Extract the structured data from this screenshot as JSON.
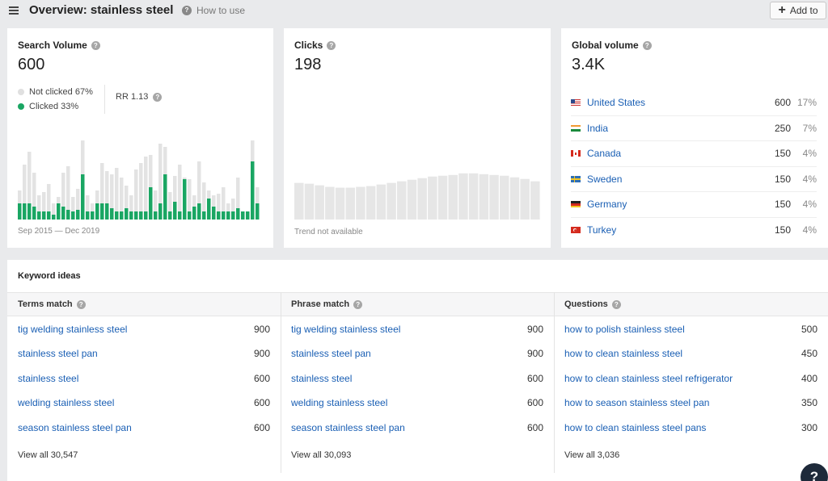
{
  "header": {
    "title": "Overview: stainless steel",
    "how_to": "How to use",
    "add_to": "Add to"
  },
  "search_volume": {
    "title": "Search Volume",
    "value": "600",
    "legend": [
      {
        "label": "Not clicked 67%",
        "color": "#e0e0e0"
      },
      {
        "label": "Clicked 33%",
        "color": "#1aa663"
      }
    ],
    "rr": "RR 1.13",
    "range": "Sep 2015 — Dec 2019",
    "bars_total": [
      0.36,
      0.68,
      0.84,
      0.58,
      0.3,
      0.34,
      0.44,
      0.2,
      0.28,
      0.58,
      0.66,
      0.28,
      0.38,
      0.98,
      0.3,
      0.2,
      0.36,
      0.7,
      0.6,
      0.56,
      0.64,
      0.52,
      0.42,
      0.3,
      0.62,
      0.7,
      0.78,
      0.8,
      0.36,
      0.94,
      0.9,
      0.34,
      0.54,
      0.68,
      0.52,
      0.5,
      0.3,
      0.72,
      0.46,
      0.36,
      0.3,
      0.32,
      0.4,
      0.2,
      0.26,
      0.52,
      0.1,
      0.1,
      0.98,
      0.4
    ],
    "bars_clicked": [
      0.2,
      0.2,
      0.2,
      0.16,
      0.1,
      0.1,
      0.1,
      0.06,
      0.2,
      0.16,
      0.12,
      0.1,
      0.12,
      0.56,
      0.1,
      0.1,
      0.2,
      0.2,
      0.2,
      0.14,
      0.1,
      0.1,
      0.14,
      0.1,
      0.1,
      0.1,
      0.1,
      0.4,
      0.1,
      0.2,
      0.56,
      0.1,
      0.22,
      0.1,
      0.5,
      0.1,
      0.16,
      0.2,
      0.1,
      0.26,
      0.16,
      0.1,
      0.1,
      0.1,
      0.1,
      0.14,
      0.1,
      0.1,
      0.72,
      0.2
    ]
  },
  "clicks": {
    "title": "Clicks",
    "value": "198",
    "trend_note": "Trend not available",
    "placeholder_bars": [
      0.46,
      0.45,
      0.43,
      0.41,
      0.4,
      0.4,
      0.41,
      0.42,
      0.44,
      0.46,
      0.48,
      0.5,
      0.52,
      0.54,
      0.55,
      0.56,
      0.58,
      0.58,
      0.57,
      0.56,
      0.55,
      0.53,
      0.51,
      0.48
    ]
  },
  "global_volume": {
    "title": "Global volume",
    "value": "3.4K",
    "countries": [
      {
        "name": "United States",
        "volume": "600",
        "pct": "17%",
        "flag": "us"
      },
      {
        "name": "India",
        "volume": "250",
        "pct": "7%",
        "flag": "in"
      },
      {
        "name": "Canada",
        "volume": "150",
        "pct": "4%",
        "flag": "ca"
      },
      {
        "name": "Sweden",
        "volume": "150",
        "pct": "4%",
        "flag": "se"
      },
      {
        "name": "Germany",
        "volume": "150",
        "pct": "4%",
        "flag": "de"
      },
      {
        "name": "Turkey",
        "volume": "150",
        "pct": "4%",
        "flag": "tr"
      }
    ]
  },
  "keyword_ideas": {
    "title": "Keyword ideas",
    "columns": [
      {
        "title": "Terms match",
        "rows": [
          {
            "keyword": "tig welding stainless steel",
            "volume": "900"
          },
          {
            "keyword": "stainless steel pan",
            "volume": "900"
          },
          {
            "keyword": "stainless steel",
            "volume": "600"
          },
          {
            "keyword": "welding stainless steel",
            "volume": "600"
          },
          {
            "keyword": "season stainless steel pan",
            "volume": "600"
          }
        ],
        "view_all": "View all 30,547"
      },
      {
        "title": "Phrase match",
        "rows": [
          {
            "keyword": "tig welding stainless steel",
            "volume": "900"
          },
          {
            "keyword": "stainless steel pan",
            "volume": "900"
          },
          {
            "keyword": "stainless steel",
            "volume": "600"
          },
          {
            "keyword": "welding stainless steel",
            "volume": "600"
          },
          {
            "keyword": "season stainless steel pan",
            "volume": "600"
          }
        ],
        "view_all": "View all 30,093"
      },
      {
        "title": "Questions",
        "rows": [
          {
            "keyword": "how to polish stainless steel",
            "volume": "500"
          },
          {
            "keyword": "how to clean stainless steel",
            "volume": "450"
          },
          {
            "keyword": "how to clean stainless steel refrigerator",
            "volume": "400"
          },
          {
            "keyword": "how to season stainless steel pan",
            "volume": "350"
          },
          {
            "keyword": "how to clean stainless steel pans",
            "volume": "300"
          }
        ],
        "view_all": "View all 3,036"
      }
    ]
  },
  "chat_button": "?"
}
